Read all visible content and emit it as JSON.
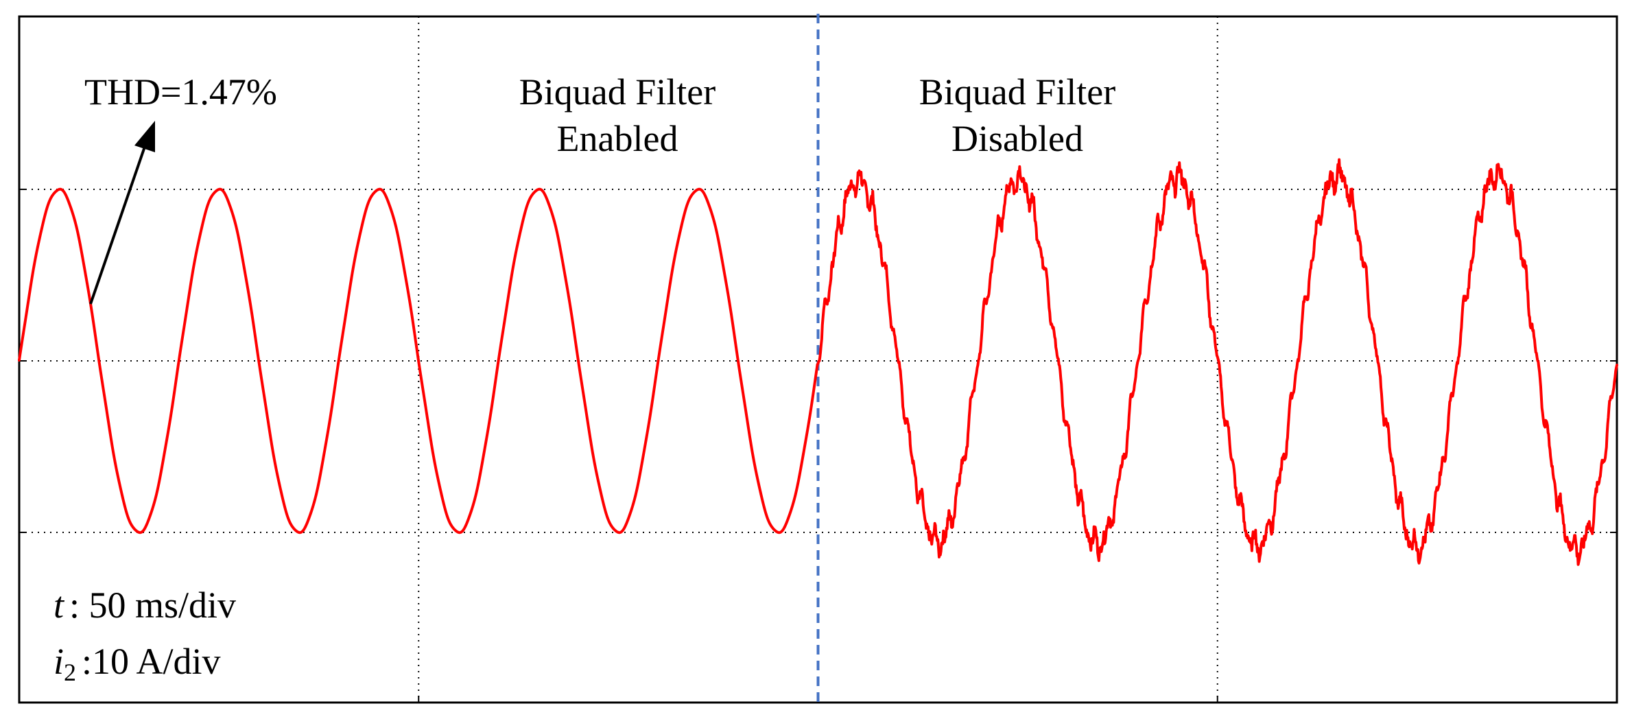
{
  "chart_data": {
    "type": "line",
    "title": "",
    "xlabel": "",
    "ylabel": "",
    "x_unit": "div",
    "y_unit": "div",
    "xlim": [
      0,
      4
    ],
    "ylim": [
      -2,
      2
    ],
    "grid": true,
    "grid_style": "dotted",
    "series_color": "#ff0000",
    "divider_color": "#4472c4",
    "time_per_div_ms": 50,
    "current_per_div_A": 10,
    "segments": [
      {
        "label_line1": "Biquad Filter",
        "label_line2": "Enabled",
        "x_start": 0.0,
        "x_end": 2.0,
        "amplitude_div": 1.0,
        "harmonic_ripple": "low",
        "thd_annotation": "THD=1.47%"
      },
      {
        "label_line1": "Biquad Filter",
        "label_line2": "Disabled",
        "x_start": 2.0,
        "x_end": 4.0,
        "amplitude_div": 1.05,
        "harmonic_ripple": "high"
      }
    ],
    "divider_x": 2.0,
    "fundamental_period_div": 0.4,
    "peaks_x_div": [
      0.1,
      0.5,
      0.9,
      1.3,
      1.7,
      2.1,
      2.5,
      2.9,
      3.3,
      3.7
    ],
    "troughs_x_div": [
      0.3,
      0.7,
      1.1,
      1.5,
      1.9,
      2.3,
      2.7,
      3.1,
      3.5,
      3.9
    ]
  },
  "annotations": {
    "thd": "THD=1.47%",
    "enabled_line1": "Biquad Filter",
    "enabled_line2": "Enabled",
    "disabled_line1": "Biquad Filter",
    "disabled_line2": "Disabled",
    "time_var": "t",
    "time_scale": ": 50 ms/div",
    "current_var": "i",
    "current_sub": "2",
    "current_scale": ":10 A/div"
  }
}
